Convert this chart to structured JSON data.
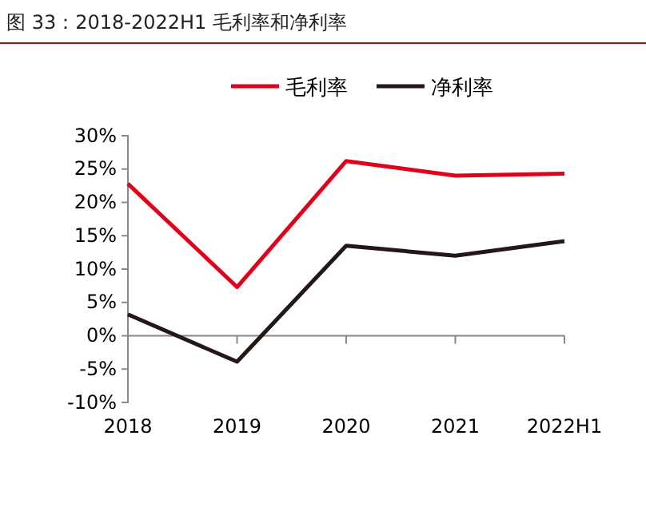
{
  "chart_data": {
    "type": "line",
    "title": "图 33：2018-2022H1 毛利率和净利率",
    "categories": [
      "2018",
      "2019",
      "2020",
      "2021",
      "2022H1"
    ],
    "series": [
      {
        "name": "毛利率",
        "color": "#e0001b",
        "values": [
          22.8,
          7.3,
          26.2,
          24.0,
          24.3
        ]
      },
      {
        "name": "净利率",
        "color": "#231815",
        "values": [
          3.2,
          -3.9,
          13.5,
          12.0,
          14.2
        ]
      }
    ],
    "ylim": [
      -10,
      30
    ],
    "yticks": [
      {
        "value": -10,
        "label": "-10%"
      },
      {
        "value": -5,
        "label": "-5%"
      },
      {
        "value": 0,
        "label": "0%"
      },
      {
        "value": 5,
        "label": "5%"
      },
      {
        "value": 10,
        "label": "10%"
      },
      {
        "value": 15,
        "label": "15%"
      },
      {
        "value": 20,
        "label": "20%"
      },
      {
        "value": 25,
        "label": "25%"
      },
      {
        "value": 30,
        "label": "30%"
      }
    ],
    "legend": "top",
    "marker": "none",
    "line_style": "solid"
  }
}
